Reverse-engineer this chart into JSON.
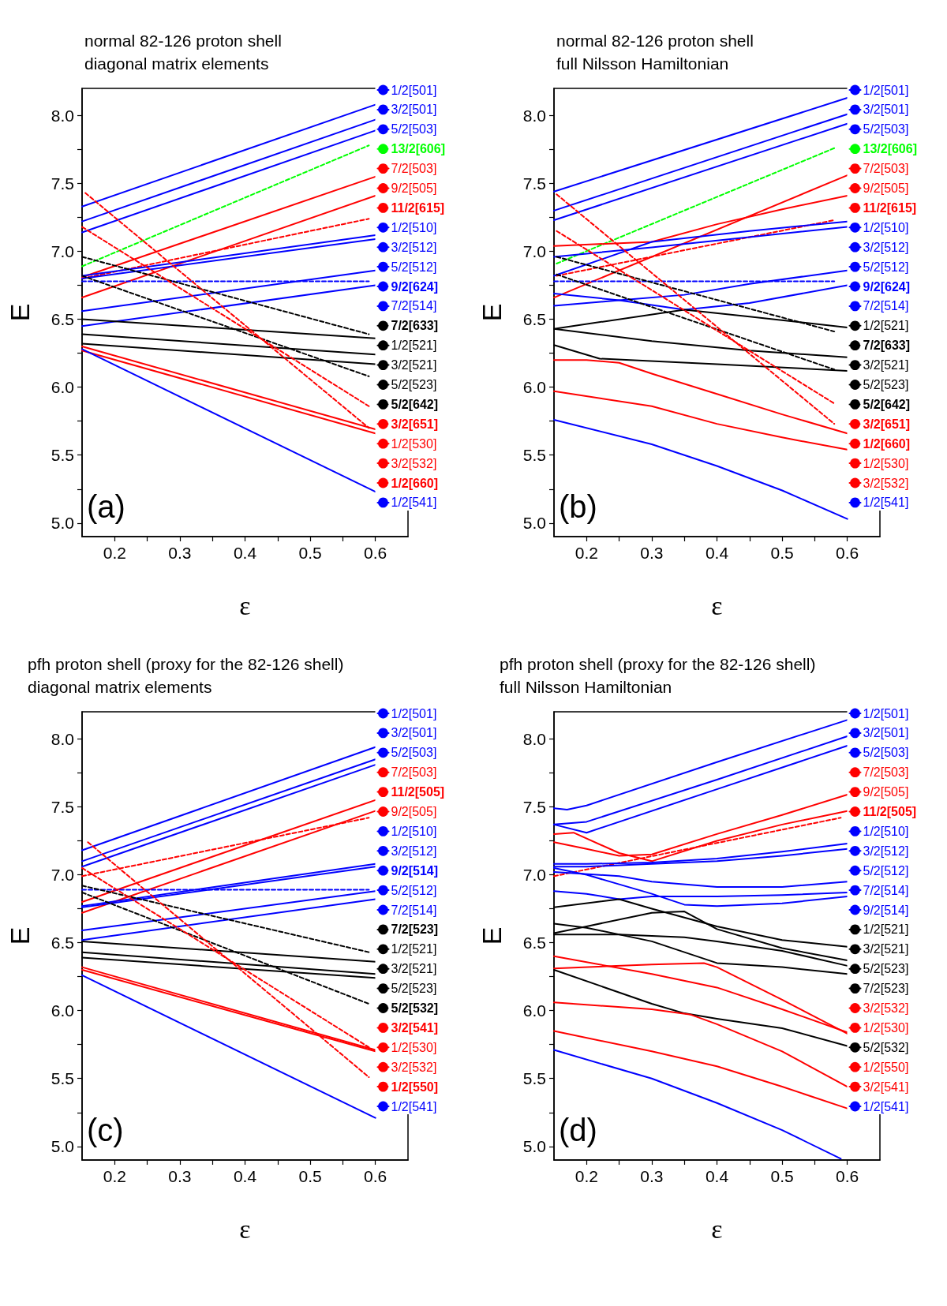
{
  "chart_data": [
    {
      "type": "line",
      "title": "normal 82-126 proton shell",
      "subtitle": "diagonal matrix elements",
      "xlabel": "ε",
      "ylabel": "E",
      "annotations": [
        "(a)"
      ],
      "xlim": [
        0.15,
        0.65
      ],
      "ylim": [
        4.9,
        8.2
      ],
      "xticks": [
        0.2,
        {
          "value": 0.25,
          "label": null
        },
        0.3,
        {
          "value": 0.35,
          "label": null
        },
        0.4,
        {
          "value": 0.45,
          "label": null
        },
        0.5,
        {
          "value": 0.55,
          "label": null
        },
        0.6
      ],
      "yticks": [
        {
          "value": 5,
          "label": "5.0"
        },
        {
          "value": 5.25,
          "label": null
        },
        {
          "value": 5.5,
          "label": "5.5"
        },
        {
          "value": 5.75,
          "label": null
        },
        {
          "value": 6,
          "label": "6.0"
        },
        {
          "value": 6.25,
          "label": null
        },
        {
          "value": 6.5,
          "label": "6.5"
        },
        {
          "value": 6.75,
          "label": null
        },
        {
          "value": 7,
          "label": "7.0"
        },
        {
          "value": 7.25,
          "label": null
        },
        {
          "value": 7.5,
          "label": "7.5"
        },
        {
          "value": 7.75,
          "label": null
        },
        {
          "value": 8,
          "label": "8.0"
        }
      ],
      "grid": false,
      "legend": "right",
      "marker": "none",
      "line_style": "solid",
      "series": [
        {
          "name": "1/2[501]",
          "color": "#0000ff",
          "x": [
            0.15,
            0.6
          ],
          "values": [
            7.33,
            8.08
          ]
        },
        {
          "name": "3/2[501]",
          "color": "#0000ff",
          "x": [
            0.15,
            0.6
          ],
          "values": [
            7.22,
            7.97
          ]
        },
        {
          "name": "5/2[503]",
          "color": "#0000ff",
          "x": [
            0.15,
            0.6
          ],
          "values": [
            7.14,
            7.89
          ]
        },
        {
          "name": "13/2[606]",
          "color": "#00ff00",
          "line_style": "dashed",
          "x": [
            0.15,
            0.59
          ],
          "values": [
            6.89,
            7.78
          ]
        },
        {
          "name": "7/2[503]",
          "color": "#ff0000",
          "x": [
            0.15,
            0.6
          ],
          "values": [
            6.81,
            7.55
          ]
        },
        {
          "name": "9/2[505]",
          "color": "#ff0000",
          "x": [
            0.15,
            0.6
          ],
          "values": [
            6.66,
            7.41
          ]
        },
        {
          "name": "11/2[615]",
          "color": "#ff0000",
          "line_style": "dashed",
          "x": [
            0.15,
            0.59
          ],
          "values": [
            6.8,
            7.24
          ]
        },
        {
          "name": "1/2[510]",
          "color": "#0000ff",
          "x": [
            0.15,
            0.6
          ],
          "values": [
            6.82,
            7.12
          ]
        },
        {
          "name": "3/2[512]",
          "color": "#0000ff",
          "x": [
            0.15,
            0.6
          ],
          "values": [
            6.8,
            7.09
          ]
        },
        {
          "name": "5/2[512]",
          "color": "#0000ff",
          "x": [
            0.15,
            0.6
          ],
          "values": [
            6.56,
            6.86
          ]
        },
        {
          "name": "9/2[624]",
          "color": "#0000ff",
          "line_style": "dashed",
          "x": [
            0.15,
            0.59
          ],
          "values": [
            6.78,
            6.78
          ]
        },
        {
          "name": "7/2[514]",
          "color": "#0000ff",
          "x": [
            0.15,
            0.6
          ],
          "values": [
            6.45,
            6.75
          ]
        },
        {
          "name": "7/2[633]",
          "color": "#000000",
          "line_style": "dashed",
          "x": [
            0.15,
            0.59
          ],
          "values": [
            6.96,
            6.39
          ]
        },
        {
          "name": "1/2[521]",
          "color": "#000000",
          "x": [
            0.15,
            0.6
          ],
          "values": [
            6.5,
            6.36
          ]
        },
        {
          "name": "3/2[521]",
          "color": "#000000",
          "x": [
            0.15,
            0.6
          ],
          "values": [
            6.39,
            6.24
          ]
        },
        {
          "name": "5/2[523]",
          "color": "#000000",
          "x": [
            0.15,
            0.6
          ],
          "values": [
            6.32,
            6.17
          ]
        },
        {
          "name": "5/2[642]",
          "color": "#000000",
          "line_style": "dashed",
          "x": [
            0.15,
            0.59
          ],
          "values": [
            6.82,
            6.08
          ]
        },
        {
          "name": "3/2[651]",
          "color": "#ff0000",
          "line_style": "dashed",
          "x": [
            0.15,
            0.59
          ],
          "values": [
            7.18,
            5.86
          ]
        },
        {
          "name": "1/2[530]",
          "color": "#ff0000",
          "x": [
            0.15,
            0.6
          ],
          "values": [
            6.3,
            5.69
          ]
        },
        {
          "name": "3/2[532]",
          "color": "#ff0000",
          "x": [
            0.15,
            0.6
          ],
          "values": [
            6.27,
            5.66
          ]
        },
        {
          "name": "1/2[660]",
          "color": "#ff0000",
          "line_style": "dashed",
          "x": [
            0.155,
            0.59
          ],
          "values": [
            7.43,
            5.7
          ]
        },
        {
          "name": "1/2[541]",
          "color": "#0000ff",
          "x": [
            0.15,
            0.6
          ],
          "values": [
            6.28,
            5.23
          ]
        }
      ]
    },
    {
      "type": "line",
      "title": "normal 82-126 proton shell",
      "subtitle": "full Nilsson Hamiltonian",
      "xlabel": "ε",
      "ylabel": "E",
      "annotations": [
        "(b)"
      ],
      "xlim": [
        0.15,
        0.65
      ],
      "ylim": [
        4.9,
        8.2
      ],
      "xticks": [
        0.2,
        {
          "value": 0.25,
          "label": null
        },
        0.3,
        {
          "value": 0.35,
          "label": null
        },
        0.4,
        {
          "value": 0.45,
          "label": null
        },
        0.5,
        {
          "value": 0.55,
          "label": null
        },
        0.6
      ],
      "yticks": [
        {
          "value": 5,
          "label": "5.0"
        },
        {
          "value": 5.25,
          "label": null
        },
        {
          "value": 5.5,
          "label": "5.5"
        },
        {
          "value": 5.75,
          "label": null
        },
        {
          "value": 6,
          "label": "6.0"
        },
        {
          "value": 6.25,
          "label": null
        },
        {
          "value": 6.5,
          "label": "6.5"
        },
        {
          "value": 6.75,
          "label": null
        },
        {
          "value": 7,
          "label": "7.0"
        },
        {
          "value": 7.25,
          "label": null
        },
        {
          "value": 7.5,
          "label": "7.5"
        },
        {
          "value": 7.75,
          "label": null
        },
        {
          "value": 8,
          "label": "8.0"
        }
      ],
      "grid": false,
      "legend": "right",
      "marker": "none",
      "line_style": "solid",
      "series": [
        {
          "name": "1/2[501]",
          "color": "#0000ff",
          "x": [
            0.15,
            0.6
          ],
          "values": [
            7.44,
            8.13
          ]
        },
        {
          "name": "3/2[501]",
          "color": "#0000ff",
          "x": [
            0.15,
            0.6
          ],
          "values": [
            7.3,
            8.01
          ]
        },
        {
          "name": "5/2[503]",
          "color": "#0000ff",
          "x": [
            0.15,
            0.6
          ],
          "values": [
            7.23,
            7.94
          ]
        },
        {
          "name": "13/2[606]",
          "color": "#00ff00",
          "line_style": "dashed",
          "x": [
            0.154,
            0.58
          ],
          "values": [
            6.91,
            7.76
          ]
        },
        {
          "name": "7/2[503]",
          "color": "#ff0000",
          "x": [
            0.15,
            0.6
          ],
          "values": [
            6.66,
            7.56
          ]
        },
        {
          "name": "9/2[505]",
          "color": "#ff0000",
          "x": [
            0.15,
            0.25,
            0.3,
            0.4,
            0.5,
            0.6
          ],
          "values": [
            7.04,
            7.06,
            7.07,
            7.2,
            7.31,
            7.41
          ]
        },
        {
          "name": "11/2[615]",
          "color": "#ff0000",
          "line_style": "dashed",
          "x": [
            0.154,
            0.58
          ],
          "values": [
            6.82,
            7.23
          ]
        },
        {
          "name": "1/2[510]",
          "color": "#0000ff",
          "x": [
            0.15,
            0.3,
            0.45,
            0.6
          ],
          "values": [
            6.82,
            7.07,
            7.15,
            7.22
          ]
        },
        {
          "name": "3/2[512]",
          "color": "#0000ff",
          "x": [
            0.15,
            0.3,
            0.6
          ],
          "values": [
            6.96,
            7.03,
            7.18
          ]
        },
        {
          "name": "5/2[512]",
          "color": "#0000ff",
          "x": [
            0.15,
            0.25,
            0.35,
            0.45,
            0.6
          ],
          "values": [
            6.6,
            6.64,
            6.68,
            6.76,
            6.86
          ]
        },
        {
          "name": "9/2[624]",
          "color": "#0000ff",
          "line_style": "dashed",
          "x": [
            0.15,
            0.58
          ],
          "values": [
            6.78,
            6.78
          ]
        },
        {
          "name": "7/2[514]",
          "color": "#0000ff",
          "x": [
            0.15,
            0.25,
            0.35,
            0.45,
            0.6
          ],
          "values": [
            6.69,
            6.64,
            6.57,
            6.62,
            6.75
          ]
        },
        {
          "name": "1/2[521]",
          "color": "#000000",
          "x": [
            0.15,
            0.35,
            0.45,
            0.6
          ],
          "values": [
            6.43,
            6.57,
            6.52,
            6.44
          ]
        },
        {
          "name": "7/2[633]",
          "color": "#000000",
          "line_style": "dashed",
          "x": [
            0.154,
            0.58
          ],
          "values": [
            6.96,
            6.41
          ]
        },
        {
          "name": "3/2[521]",
          "color": "#000000",
          "x": [
            0.15,
            0.3,
            0.45,
            0.6
          ],
          "values": [
            6.43,
            6.34,
            6.27,
            6.22
          ]
        },
        {
          "name": "5/2[523]",
          "color": "#000000",
          "x": [
            0.15,
            0.22,
            0.4,
            0.6
          ],
          "values": [
            6.31,
            6.21,
            6.17,
            6.12
          ]
        },
        {
          "name": "5/2[642]",
          "color": "#000000",
          "line_style": "dashed",
          "x": [
            0.154,
            0.58
          ],
          "values": [
            6.83,
            6.13
          ]
        },
        {
          "name": "3/2[651]",
          "color": "#ff0000",
          "line_style": "dashed",
          "x": [
            0.154,
            0.58
          ],
          "values": [
            7.15,
            5.88
          ]
        },
        {
          "name": "1/2[660]",
          "color": "#ff0000",
          "line_style": "dashed",
          "x": [
            0.154,
            0.58
          ],
          "values": [
            7.42,
            5.73
          ]
        },
        {
          "name": "1/2[530]",
          "color": "#ff0000",
          "x": [
            0.15,
            0.2,
            0.25,
            0.3,
            0.4,
            0.5,
            0.6
          ],
          "values": [
            6.2,
            6.2,
            6.18,
            6.1,
            5.95,
            5.8,
            5.66
          ]
        },
        {
          "name": "3/2[532]",
          "color": "#ff0000",
          "x": [
            0.15,
            0.3,
            0.4,
            0.5,
            0.6
          ],
          "values": [
            5.97,
            5.86,
            5.73,
            5.63,
            5.54
          ]
        },
        {
          "name": "1/2[541]",
          "color": "#0000ff",
          "x": [
            0.15,
            0.3,
            0.4,
            0.5,
            0.6
          ],
          "values": [
            5.76,
            5.58,
            5.42,
            5.24,
            5.03
          ]
        }
      ]
    },
    {
      "type": "line",
      "title": "pfh proton shell (proxy for the 82-126 shell)",
      "subtitle": "diagonal matrix elements",
      "xlabel": "ε",
      "ylabel": "E",
      "annotations": [
        "(c)"
      ],
      "xlim": [
        0.15,
        0.65
      ],
      "ylim": [
        4.9,
        8.2
      ],
      "xticks": [
        0.2,
        {
          "value": 0.25,
          "label": null
        },
        0.3,
        {
          "value": 0.35,
          "label": null
        },
        0.4,
        {
          "value": 0.45,
          "label": null
        },
        0.5,
        {
          "value": 0.55,
          "label": null
        },
        0.6
      ],
      "yticks": [
        {
          "value": 5,
          "label": "5.0"
        },
        {
          "value": 5.25,
          "label": null
        },
        {
          "value": 5.5,
          "label": "5.5"
        },
        {
          "value": 5.75,
          "label": null
        },
        {
          "value": 6,
          "label": "6.0"
        },
        {
          "value": 6.25,
          "label": null
        },
        {
          "value": 6.5,
          "label": "6.5"
        },
        {
          "value": 6.75,
          "label": null
        },
        {
          "value": 7,
          "label": "7.0"
        },
        {
          "value": 7.25,
          "label": null
        },
        {
          "value": 7.5,
          "label": "7.5"
        },
        {
          "value": 7.75,
          "label": null
        },
        {
          "value": 8,
          "label": "8.0"
        }
      ],
      "grid": false,
      "legend": "right",
      "marker": "none",
      "line_style": "solid",
      "series": [
        {
          "name": "1/2[501]",
          "color": "#0000ff",
          "x": [
            0.15,
            0.6
          ],
          "values": [
            7.18,
            7.94
          ]
        },
        {
          "name": "3/2[501]",
          "color": "#0000ff",
          "x": [
            0.15,
            0.6
          ],
          "values": [
            7.1,
            7.85
          ]
        },
        {
          "name": "5/2[503]",
          "color": "#0000ff",
          "x": [
            0.15,
            0.6
          ],
          "values": [
            7.06,
            7.81
          ]
        },
        {
          "name": "7/2[503]",
          "color": "#ff0000",
          "x": [
            0.15,
            0.6
          ],
          "values": [
            6.8,
            7.55
          ]
        },
        {
          "name": "11/2[505]",
          "color": "#ff0000",
          "line_style": "dashed",
          "x": [
            0.15,
            0.59
          ],
          "values": [
            6.99,
            7.42
          ]
        },
        {
          "name": "9/2[505]",
          "color": "#ff0000",
          "x": [
            0.15,
            0.6
          ],
          "values": [
            6.72,
            7.47
          ]
        },
        {
          "name": "1/2[510]",
          "color": "#0000ff",
          "x": [
            0.15,
            0.6
          ],
          "values": [
            6.77,
            7.08
          ]
        },
        {
          "name": "3/2[512]",
          "color": "#0000ff",
          "x": [
            0.15,
            0.6
          ],
          "values": [
            6.76,
            7.06
          ]
        },
        {
          "name": "9/2[514]",
          "color": "#0000ff",
          "line_style": "dashed",
          "x": [
            0.15,
            0.59
          ],
          "values": [
            6.89,
            6.89
          ]
        },
        {
          "name": "5/2[512]",
          "color": "#0000ff",
          "x": [
            0.15,
            0.6
          ],
          "values": [
            6.59,
            6.88
          ]
        },
        {
          "name": "7/2[514]",
          "color": "#0000ff",
          "x": [
            0.15,
            0.6
          ],
          "values": [
            6.52,
            6.82
          ]
        },
        {
          "name": "7/2[523]",
          "color": "#000000",
          "line_style": "dashed",
          "x": [
            0.15,
            0.59
          ],
          "values": [
            6.92,
            6.43
          ]
        },
        {
          "name": "1/2[521]",
          "color": "#000000",
          "x": [
            0.15,
            0.6
          ],
          "values": [
            6.51,
            6.36
          ]
        },
        {
          "name": "3/2[521]",
          "color": "#000000",
          "x": [
            0.15,
            0.6
          ],
          "values": [
            6.43,
            6.27
          ]
        },
        {
          "name": "5/2[523]",
          "color": "#000000",
          "x": [
            0.15,
            0.6
          ],
          "values": [
            6.39,
            6.24
          ]
        },
        {
          "name": "5/2[532]",
          "color": "#000000",
          "line_style": "dashed",
          "x": [
            0.15,
            0.59
          ],
          "values": [
            6.87,
            6.05
          ]
        },
        {
          "name": "3/2[541]",
          "color": "#ff0000",
          "line_style": "dashed",
          "x": [
            0.15,
            0.59
          ],
          "values": [
            7.05,
            5.73
          ]
        },
        {
          "name": "1/2[530]",
          "color": "#ff0000",
          "x": [
            0.15,
            0.6
          ],
          "values": [
            6.32,
            5.71
          ]
        },
        {
          "name": "3/2[532]",
          "color": "#ff0000",
          "x": [
            0.15,
            0.6
          ],
          "values": [
            6.3,
            5.7
          ]
        },
        {
          "name": "1/2[550]",
          "color": "#ff0000",
          "line_style": "dashed",
          "x": [
            0.159,
            0.59
          ],
          "values": [
            7.24,
            5.51
          ]
        },
        {
          "name": "1/2[541]",
          "color": "#0000ff",
          "x": [
            0.15,
            0.6
          ],
          "values": [
            6.26,
            5.21
          ]
        }
      ]
    },
    {
      "type": "line",
      "title": "pfh proton shell (proxy for the 82-126 shell)",
      "subtitle": "full Nilsson Hamiltonian",
      "xlabel": "ε",
      "ylabel": "E",
      "annotations": [
        "(d)"
      ],
      "xlim": [
        0.15,
        0.65
      ],
      "ylim": [
        4.9,
        8.2
      ],
      "xticks": [
        0.2,
        {
          "value": 0.25,
          "label": null
        },
        0.3,
        {
          "value": 0.35,
          "label": null
        },
        0.4,
        {
          "value": 0.45,
          "label": null
        },
        0.5,
        {
          "value": 0.55,
          "label": null
        },
        0.6
      ],
      "yticks": [
        {
          "value": 5,
          "label": "5.0"
        },
        {
          "value": 5.25,
          "label": null
        },
        {
          "value": 5.5,
          "label": "5.5"
        },
        {
          "value": 5.75,
          "label": null
        },
        {
          "value": 6,
          "label": "6.0"
        },
        {
          "value": 6.25,
          "label": null
        },
        {
          "value": 6.5,
          "label": "6.5"
        },
        {
          "value": 6.75,
          "label": null
        },
        {
          "value": 7,
          "label": "7.0"
        },
        {
          "value": 7.25,
          "label": null
        },
        {
          "value": 7.5,
          "label": "7.5"
        },
        {
          "value": 7.75,
          "label": null
        },
        {
          "value": 8,
          "label": "8.0"
        }
      ],
      "grid": false,
      "legend": "right",
      "marker": "none",
      "line_style": "solid",
      "series": [
        {
          "name": "1/2[501]",
          "color": "#0000ff",
          "x": [
            0.15,
            0.17,
            0.2,
            0.4,
            0.6
          ],
          "values": [
            7.49,
            7.48,
            7.51,
            7.83,
            8.14
          ]
        },
        {
          "name": "3/2[501]",
          "color": "#0000ff",
          "x": [
            0.15,
            0.2,
            0.4,
            0.6
          ],
          "values": [
            7.37,
            7.39,
            7.7,
            8.02
          ]
        },
        {
          "name": "5/2[503]",
          "color": "#0000ff",
          "x": [
            0.15,
            0.2,
            0.4,
            0.6
          ],
          "values": [
            7.37,
            7.31,
            7.63,
            7.95
          ]
        },
        {
          "name": "7/2[503]",
          "color": "#ff0000",
          "x": [
            0.15,
            0.2,
            0.25,
            0.3,
            0.4,
            0.5,
            0.6
          ],
          "values": [
            7.24,
            7.19,
            7.14,
            7.15,
            7.3,
            7.44,
            7.59
          ]
        },
        {
          "name": "9/2[505]",
          "color": "#ff0000",
          "x": [
            0.15,
            0.18,
            0.25,
            0.3,
            0.4,
            0.5,
            0.6
          ],
          "values": [
            7.3,
            7.31,
            7.16,
            7.1,
            7.25,
            7.37,
            7.47
          ]
        },
        {
          "name": "11/2[505]",
          "color": "#ff0000",
          "line_style": "dashed",
          "x": [
            0.15,
            0.59
          ],
          "values": [
            6.99,
            7.42
          ]
        },
        {
          "name": "1/2[510]",
          "color": "#0000ff",
          "x": [
            0.15,
            0.2,
            0.3,
            0.4,
            0.5,
            0.6
          ],
          "values": [
            7.08,
            7.08,
            7.09,
            7.12,
            7.17,
            7.23
          ]
        },
        {
          "name": "3/2[512]",
          "color": "#0000ff",
          "x": [
            0.15,
            0.2,
            0.3,
            0.4,
            0.5,
            0.6
          ],
          "values": [
            7.06,
            7.06,
            7.08,
            7.1,
            7.14,
            7.19
          ]
        },
        {
          "name": "5/2[512]",
          "color": "#0000ff",
          "x": [
            0.15,
            0.25,
            0.3,
            0.4,
            0.5,
            0.6
          ],
          "values": [
            7.02,
            6.99,
            6.95,
            6.91,
            6.91,
            6.95
          ]
        },
        {
          "name": "7/2[514]",
          "color": "#0000ff",
          "x": [
            0.15,
            0.2,
            0.25,
            0.3,
            0.4,
            0.5,
            0.6
          ],
          "values": [
            6.88,
            6.86,
            6.82,
            6.84,
            6.84,
            6.85,
            6.87
          ]
        },
        {
          "name": "9/2[514]",
          "color": "#0000ff",
          "x": [
            0.15,
            0.2,
            0.25,
            0.3,
            0.35,
            0.4,
            0.5,
            0.6
          ],
          "values": [
            7.05,
            7.0,
            6.93,
            6.86,
            6.78,
            6.77,
            6.79,
            6.84
          ]
        },
        {
          "name": "1/2[521]",
          "color": "#000000",
          "x": [
            0.15,
            0.25,
            0.3,
            0.4,
            0.5,
            0.6
          ],
          "values": [
            6.76,
            6.82,
            6.75,
            6.62,
            6.52,
            6.47
          ]
        },
        {
          "name": "3/2[521]",
          "color": "#000000",
          "x": [
            0.15,
            0.2,
            0.3,
            0.35,
            0.4,
            0.5,
            0.6
          ],
          "values": [
            6.57,
            6.62,
            6.72,
            6.73,
            6.6,
            6.46,
            6.37
          ]
        },
        {
          "name": "5/2[523]",
          "color": "#000000",
          "x": [
            0.15,
            0.25,
            0.35,
            0.4,
            0.5,
            0.6
          ],
          "values": [
            6.56,
            6.56,
            6.54,
            6.51,
            6.44,
            6.33
          ]
        },
        {
          "name": "7/2[523]",
          "color": "#000000",
          "x": [
            0.15,
            0.2,
            0.3,
            0.35,
            0.4,
            0.5,
            0.6
          ],
          "values": [
            6.64,
            6.61,
            6.51,
            6.43,
            6.35,
            6.32,
            6.27
          ]
        },
        {
          "name": "3/2[532]",
          "color": "#ff0000",
          "x": [
            0.15,
            0.3,
            0.4,
            0.5,
            0.6
          ],
          "values": [
            6.4,
            6.27,
            6.17,
            6.01,
            5.84
          ]
        },
        {
          "name": "1/2[530]",
          "color": "#ff0000",
          "x": [
            0.15,
            0.3,
            0.38,
            0.4,
            0.5,
            0.6
          ],
          "values": [
            6.31,
            6.34,
            6.35,
            6.32,
            6.08,
            5.83
          ]
        },
        {
          "name": "5/2[532]",
          "color": "#000000",
          "x": [
            0.15,
            0.3,
            0.35,
            0.4,
            0.5,
            0.6
          ],
          "values": [
            6.3,
            6.05,
            5.98,
            5.94,
            5.87,
            5.74
          ]
        },
        {
          "name": "1/2[550]",
          "color": "#ff0000",
          "x": [
            0.15,
            0.3,
            0.36,
            0.4,
            0.5,
            0.6
          ],
          "values": [
            6.06,
            6.01,
            5.97,
            5.9,
            5.7,
            5.44
          ]
        },
        {
          "name": "3/2[541]",
          "color": "#ff0000",
          "x": [
            0.15,
            0.3,
            0.4,
            0.5,
            0.6
          ],
          "values": [
            5.85,
            5.7,
            5.59,
            5.44,
            5.28
          ]
        },
        {
          "name": "1/2[541]",
          "color": "#0000ff",
          "x": [
            0.15,
            0.3,
            0.4,
            0.5,
            0.59
          ],
          "values": [
            5.71,
            5.5,
            5.32,
            5.12,
            4.91
          ]
        }
      ]
    }
  ]
}
